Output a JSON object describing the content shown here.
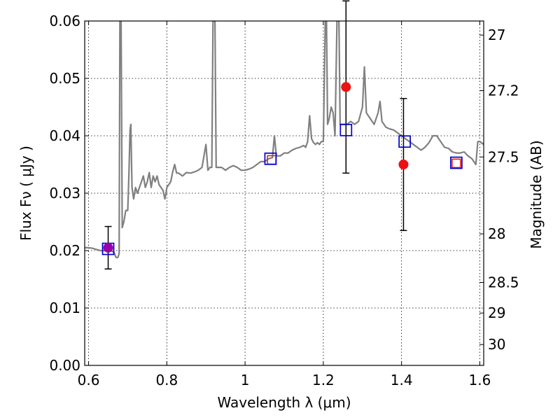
{
  "chart_data": {
    "type": "line",
    "xlabel": "Wavelength  λ (μm)",
    "ylabel": "Flux  Fν  ( μJy )",
    "y2label": "Magnitude (AB)",
    "xlim": [
      0.59,
      1.61
    ],
    "ylim": [
      0.0,
      0.06
    ],
    "grid": true,
    "x_ticks": [
      0.6,
      0.8,
      1.0,
      1.2,
      1.4,
      1.6
    ],
    "x_tick_labels": [
      "0.6",
      "0.8",
      "1",
      "1.2",
      "1.4",
      "1.6"
    ],
    "y_ticks": [
      0.0,
      0.01,
      0.02,
      0.03,
      0.04,
      0.05,
      0.06
    ],
    "y_tick_labels": [
      "0.00",
      "0.01",
      "0.02",
      "0.03",
      "0.04",
      "0.05",
      "0.06"
    ],
    "mag_ticks": [
      27,
      27.2,
      27.5,
      28,
      28.5,
      29,
      30
    ],
    "mag_tick_labels": [
      "27",
      "27.2",
      "27.5",
      "28",
      "28.5",
      "29",
      "30"
    ],
    "model_spectrum": {
      "color": "#808080",
      "points": [
        [
          0.59,
          0.0205
        ],
        [
          0.6,
          0.0205
        ],
        [
          0.61,
          0.0204
        ],
        [
          0.62,
          0.0202
        ],
        [
          0.63,
          0.02
        ],
        [
          0.64,
          0.02
        ],
        [
          0.65,
          0.02
        ],
        [
          0.66,
          0.0199
        ],
        [
          0.665,
          0.0197
        ],
        [
          0.67,
          0.0188
        ],
        [
          0.675,
          0.0188
        ],
        [
          0.678,
          0.0195
        ],
        [
          0.68,
          0.06
        ],
        [
          0.683,
          0.06
        ],
        [
          0.686,
          0.024
        ],
        [
          0.69,
          0.025
        ],
        [
          0.695,
          0.027
        ],
        [
          0.7,
          0.027
        ],
        [
          0.703,
          0.033
        ],
        [
          0.706,
          0.041
        ],
        [
          0.708,
          0.042
        ],
        [
          0.711,
          0.031
        ],
        [
          0.715,
          0.029
        ],
        [
          0.72,
          0.031
        ],
        [
          0.725,
          0.03
        ],
        [
          0.73,
          0.031
        ],
        [
          0.735,
          0.032
        ],
        [
          0.74,
          0.033
        ],
        [
          0.745,
          0.031
        ],
        [
          0.75,
          0.032
        ],
        [
          0.755,
          0.0336
        ],
        [
          0.76,
          0.031
        ],
        [
          0.765,
          0.033
        ],
        [
          0.77,
          0.032
        ],
        [
          0.775,
          0.033
        ],
        [
          0.78,
          0.0315
        ],
        [
          0.79,
          0.0305
        ],
        [
          0.795,
          0.029
        ],
        [
          0.8,
          0.031
        ],
        [
          0.81,
          0.032
        ],
        [
          0.815,
          0.0337
        ],
        [
          0.82,
          0.035
        ],
        [
          0.825,
          0.0335
        ],
        [
          0.83,
          0.0335
        ],
        [
          0.84,
          0.033
        ],
        [
          0.85,
          0.0336
        ],
        [
          0.86,
          0.0335
        ],
        [
          0.87,
          0.0337
        ],
        [
          0.88,
          0.034
        ],
        [
          0.89,
          0.0345
        ],
        [
          0.895,
          0.0365
        ],
        [
          0.9,
          0.0385
        ],
        [
          0.905,
          0.034
        ],
        [
          0.91,
          0.0345
        ],
        [
          0.915,
          0.0345
        ],
        [
          0.918,
          0.06
        ],
        [
          0.923,
          0.06
        ],
        [
          0.926,
          0.0345
        ],
        [
          0.93,
          0.0345
        ],
        [
          0.94,
          0.0345
        ],
        [
          0.95,
          0.034
        ],
        [
          0.96,
          0.0345
        ],
        [
          0.97,
          0.0348
        ],
        [
          0.98,
          0.0345
        ],
        [
          0.99,
          0.034
        ],
        [
          1.0,
          0.034
        ],
        [
          1.01,
          0.0342
        ],
        [
          1.02,
          0.0345
        ],
        [
          1.03,
          0.035
        ],
        [
          1.04,
          0.0355
        ],
        [
          1.05,
          0.0355
        ],
        [
          1.06,
          0.036
        ],
        [
          1.07,
          0.0362
        ],
        [
          1.075,
          0.04
        ],
        [
          1.08,
          0.0365
        ],
        [
          1.09,
          0.0365
        ],
        [
          1.1,
          0.037
        ],
        [
          1.11,
          0.037
        ],
        [
          1.12,
          0.0375
        ],
        [
          1.13,
          0.0378
        ],
        [
          1.14,
          0.038
        ],
        [
          1.15,
          0.0383
        ],
        [
          1.155,
          0.038
        ],
        [
          1.16,
          0.039
        ],
        [
          1.165,
          0.0435
        ],
        [
          1.17,
          0.0395
        ],
        [
          1.175,
          0.0388
        ],
        [
          1.18,
          0.0385
        ],
        [
          1.185,
          0.0388
        ],
        [
          1.19,
          0.0385
        ],
        [
          1.195,
          0.039
        ],
        [
          1.2,
          0.039
        ],
        [
          1.205,
          0.06
        ],
        [
          1.208,
          0.06
        ],
        [
          1.211,
          0.042
        ],
        [
          1.215,
          0.043
        ],
        [
          1.22,
          0.045
        ],
        [
          1.225,
          0.044
        ],
        [
          1.23,
          0.04
        ],
        [
          1.235,
          0.06
        ],
        [
          1.24,
          0.06
        ],
        [
          1.243,
          0.042
        ],
        [
          1.25,
          0.042
        ],
        [
          1.26,
          0.042
        ],
        [
          1.27,
          0.0425
        ],
        [
          1.28,
          0.042
        ],
        [
          1.29,
          0.0425
        ],
        [
          1.3,
          0.045
        ],
        [
          1.305,
          0.052
        ],
        [
          1.31,
          0.044
        ],
        [
          1.32,
          0.043
        ],
        [
          1.33,
          0.042
        ],
        [
          1.34,
          0.044
        ],
        [
          1.345,
          0.046
        ],
        [
          1.35,
          0.0425
        ],
        [
          1.36,
          0.0415
        ],
        [
          1.37,
          0.0412
        ],
        [
          1.38,
          0.041
        ],
        [
          1.39,
          0.0405
        ],
        [
          1.4,
          0.04
        ],
        [
          1.41,
          0.0395
        ],
        [
          1.42,
          0.039
        ],
        [
          1.43,
          0.0385
        ],
        [
          1.44,
          0.038
        ],
        [
          1.45,
          0.0375
        ],
        [
          1.46,
          0.038
        ],
        [
          1.47,
          0.0388
        ],
        [
          1.48,
          0.04
        ],
        [
          1.49,
          0.04
        ],
        [
          1.5,
          0.039
        ],
        [
          1.51,
          0.038
        ],
        [
          1.52,
          0.0378
        ],
        [
          1.53,
          0.0372
        ],
        [
          1.54,
          0.037
        ],
        [
          1.55,
          0.037
        ],
        [
          1.56,
          0.0372
        ],
        [
          1.57,
          0.0365
        ],
        [
          1.58,
          0.036
        ],
        [
          1.59,
          0.035
        ],
        [
          1.595,
          0.039
        ],
        [
          1.6,
          0.039
        ],
        [
          1.61,
          0.0385
        ]
      ]
    },
    "model_photometry": {
      "color": "#0000cc",
      "points": [
        {
          "x": 0.65,
          "y": 0.0203
        },
        {
          "x": 1.065,
          "y": 0.036
        },
        {
          "x": 1.258,
          "y": 0.041
        },
        {
          "x": 1.408,
          "y": 0.039
        },
        {
          "x": 1.54,
          "y": 0.0353
        }
      ]
    },
    "observed_photometry": {
      "color": "#ee1111",
      "points": [
        {
          "x": 0.65,
          "y": 0.0205,
          "yerr": 0.0037
        },
        {
          "x": 1.258,
          "y": 0.0485,
          "yerr": 0.015
        },
        {
          "x": 1.405,
          "y": 0.035,
          "yerr": 0.0115
        }
      ]
    },
    "upper_limits": {
      "color": "#ee1111",
      "points": [
        {
          "x": 1.068,
          "y": 0.0358
        },
        {
          "x": 1.54,
          "y": 0.0352
        }
      ]
    },
    "first_point_color": "#9900aa"
  }
}
